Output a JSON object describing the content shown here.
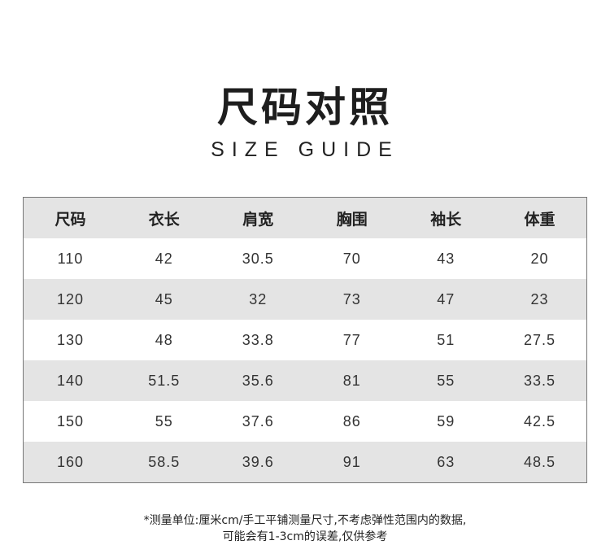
{
  "title": "尺码对照",
  "subtitle": "SIZE GUIDE",
  "table": {
    "headers": [
      "尺码",
      "衣长",
      "肩宽",
      "胸围",
      "袖长",
      "体重"
    ],
    "rows": [
      [
        "110",
        "42",
        "30.5",
        "70",
        "43",
        "20"
      ],
      [
        "120",
        "45",
        "32",
        "73",
        "47",
        "23"
      ],
      [
        "130",
        "48",
        "33.8",
        "77",
        "51",
        "27.5"
      ],
      [
        "140",
        "51.5",
        "35.6",
        "81",
        "55",
        "33.5"
      ],
      [
        "150",
        "55",
        "37.6",
        "86",
        "59",
        "42.5"
      ],
      [
        "160",
        "58.5",
        "39.6",
        "91",
        "63",
        "48.5"
      ]
    ]
  },
  "note": {
    "line1": "*测量单位:厘米cm/手工平铺测量尺寸,不考虑弹性范围内的数据,",
    "line2": "可能会有1-3cm的误差,仅供参考"
  },
  "colors": {
    "header_bg": "#e4e4e4",
    "stripe_bg": "#e4e4e4",
    "border": "#777777"
  }
}
